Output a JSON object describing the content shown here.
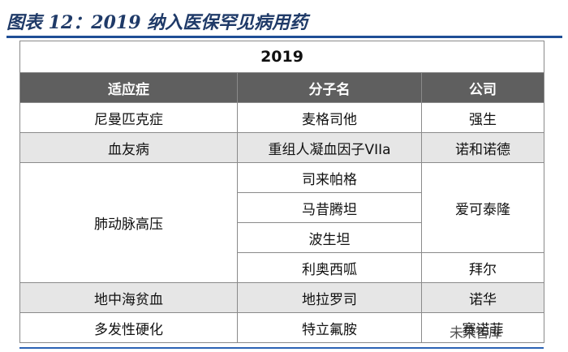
{
  "figure_title": "图表 12：2019 纳入医保罕见病用药",
  "table": {
    "year": "2019",
    "headers": [
      "适应症",
      "分子名",
      "公司"
    ],
    "rows": [
      {
        "indication": "尼曼匹克症",
        "molecule": "麦格司他",
        "company": "强生",
        "shaded": false
      },
      {
        "indication": "血友病",
        "molecule": "重组人凝血因子VIIa",
        "company": "诺和诺德",
        "shaded": true
      },
      {
        "indication": "肺动脉高压",
        "molecules": [
          "司来帕格",
          "马昔腾坦",
          "波生坦",
          "利奥西呱"
        ],
        "companies": [
          "爱可泰隆",
          "拜尔"
        ],
        "shaded": false
      },
      {
        "indication": "地中海贫血",
        "molecule": "地拉罗司",
        "company": "诺华",
        "shaded": true
      },
      {
        "indication": "多发性硬化",
        "molecule": "特立氟胺",
        "company": "赛诺菲",
        "shaded": false
      }
    ]
  },
  "watermark": "未来智库",
  "colors": {
    "title": "#1f3a68",
    "header_bg": "#5f5f5f",
    "shade_bg": "#e6e6e6",
    "rule": "#1f4e96"
  }
}
